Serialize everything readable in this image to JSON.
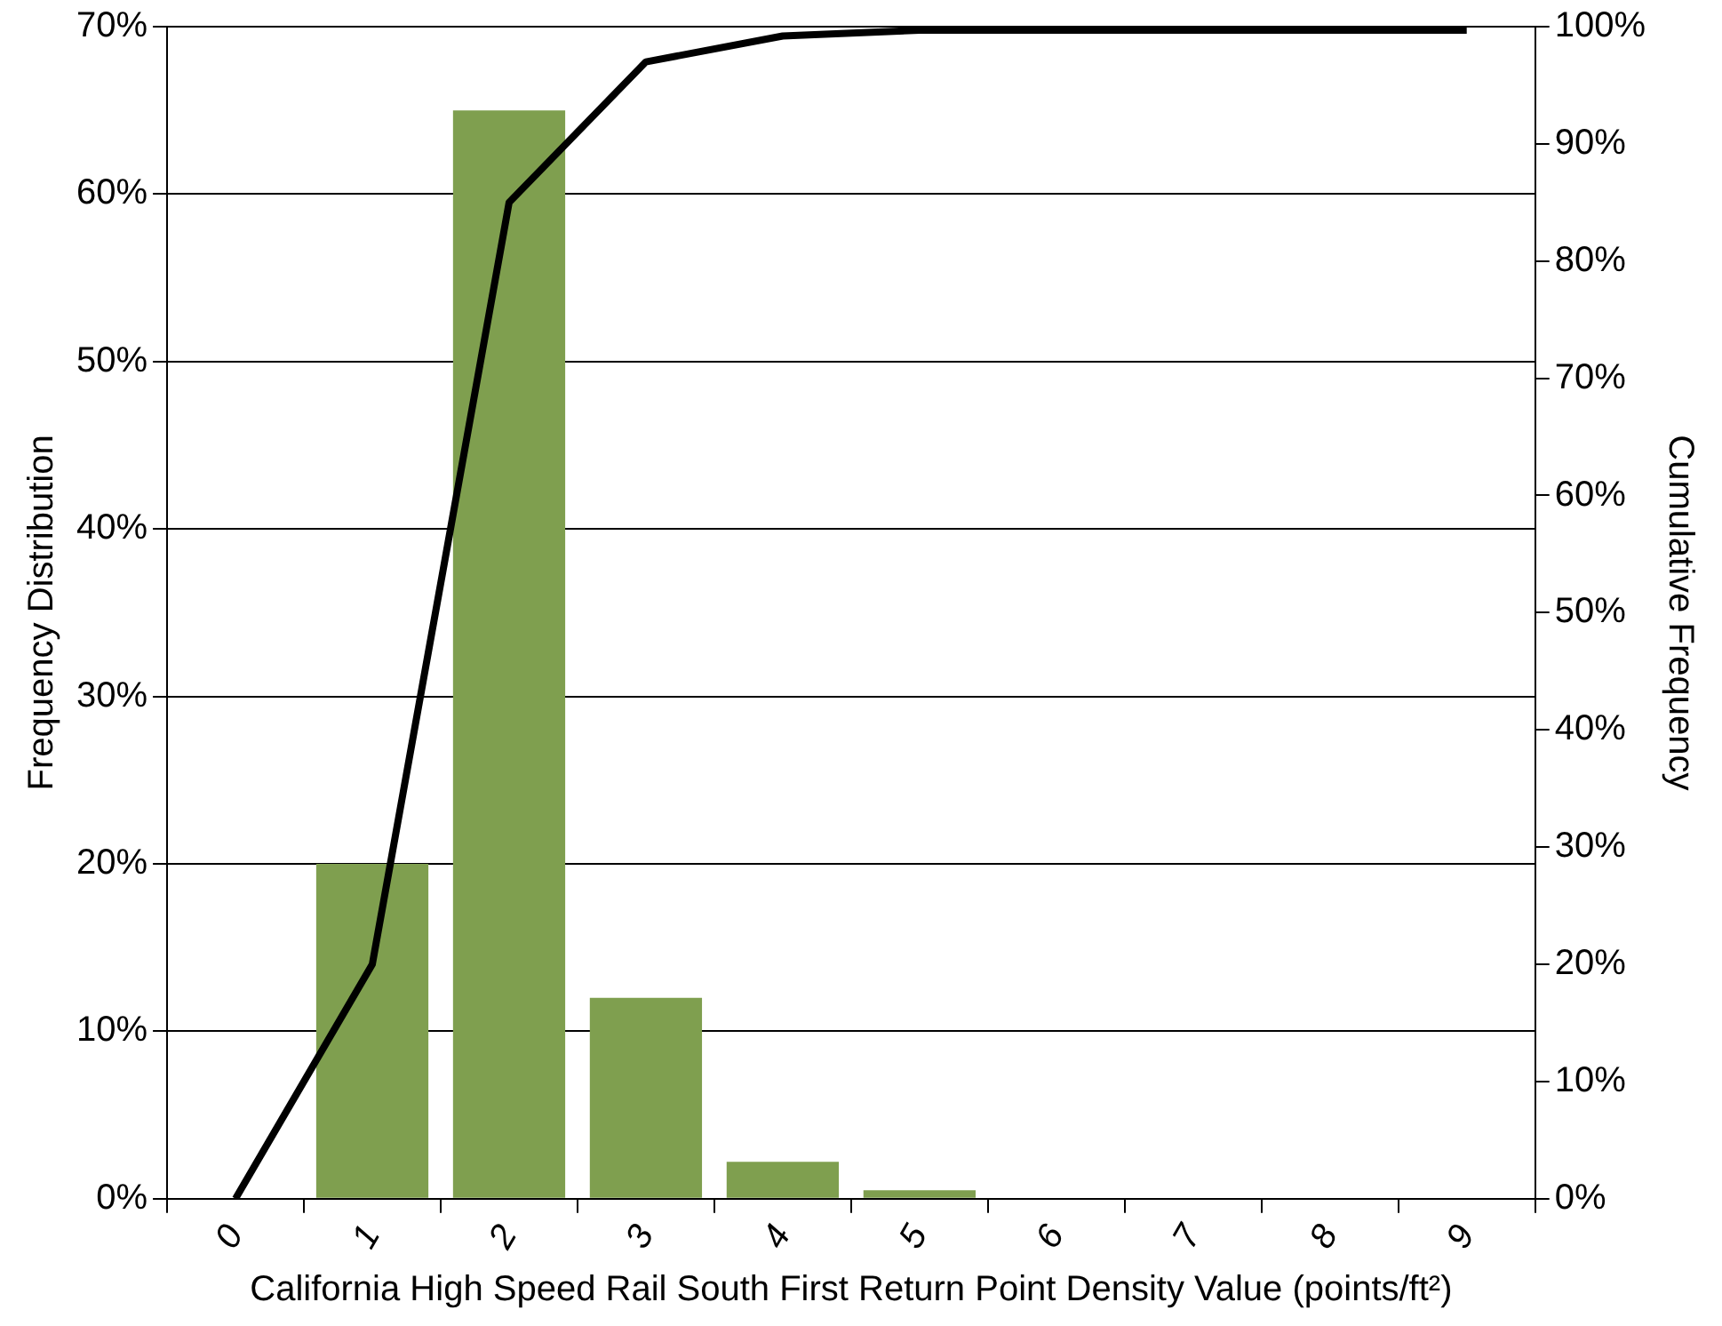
{
  "chart_data": {
    "type": "bar",
    "xlabel": "California High Speed Rail South First Return Point Density Value (points/ft²)",
    "ylabel": "Frequency Distribution",
    "y2label": "Cumulative Frequency",
    "categories": [
      "0",
      "1",
      "2",
      "3",
      "4",
      "5",
      "6",
      "7",
      "8",
      "9"
    ],
    "series": [
      {
        "color": "#7f9f4f",
        "values": [
          0,
          20,
          65,
          12,
          2.2,
          0.5,
          0,
          0,
          0,
          0
        ]
      },
      {
        "type": "line",
        "axis": "y2",
        "color": "#000000",
        "values": [
          0,
          20,
          85,
          97,
          99.2,
          99.7,
          99.7,
          99.7,
          99.7,
          99.7
        ]
      }
    ],
    "ylim": [
      0,
      70
    ],
    "yticks": [
      {
        "value": 0,
        "label": "0%"
      },
      {
        "value": 10,
        "label": "10%"
      },
      {
        "value": 20,
        "label": "20%"
      },
      {
        "value": 30,
        "label": "30%"
      },
      {
        "value": 40,
        "label": "40%"
      },
      {
        "value": 50,
        "label": "50%"
      },
      {
        "value": 60,
        "label": "60%"
      },
      {
        "value": 70,
        "label": "70%"
      }
    ],
    "y2lim": [
      0,
      100
    ],
    "y2ticks": [
      {
        "value": 0,
        "label": "0%"
      },
      {
        "value": 10,
        "label": "10%"
      },
      {
        "value": 20,
        "label": "20%"
      },
      {
        "value": 30,
        "label": "30%"
      },
      {
        "value": 40,
        "label": "40%"
      },
      {
        "value": 50,
        "label": "50%"
      },
      {
        "value": 60,
        "label": "60%"
      },
      {
        "value": 70,
        "label": "70%"
      },
      {
        "value": 80,
        "label": "80%"
      },
      {
        "value": 90,
        "label": "90%"
      },
      {
        "value": 100,
        "label": "100%"
      }
    ],
    "grid": "y",
    "legend": false,
    "marker": "none",
    "line_style": "solid"
  }
}
